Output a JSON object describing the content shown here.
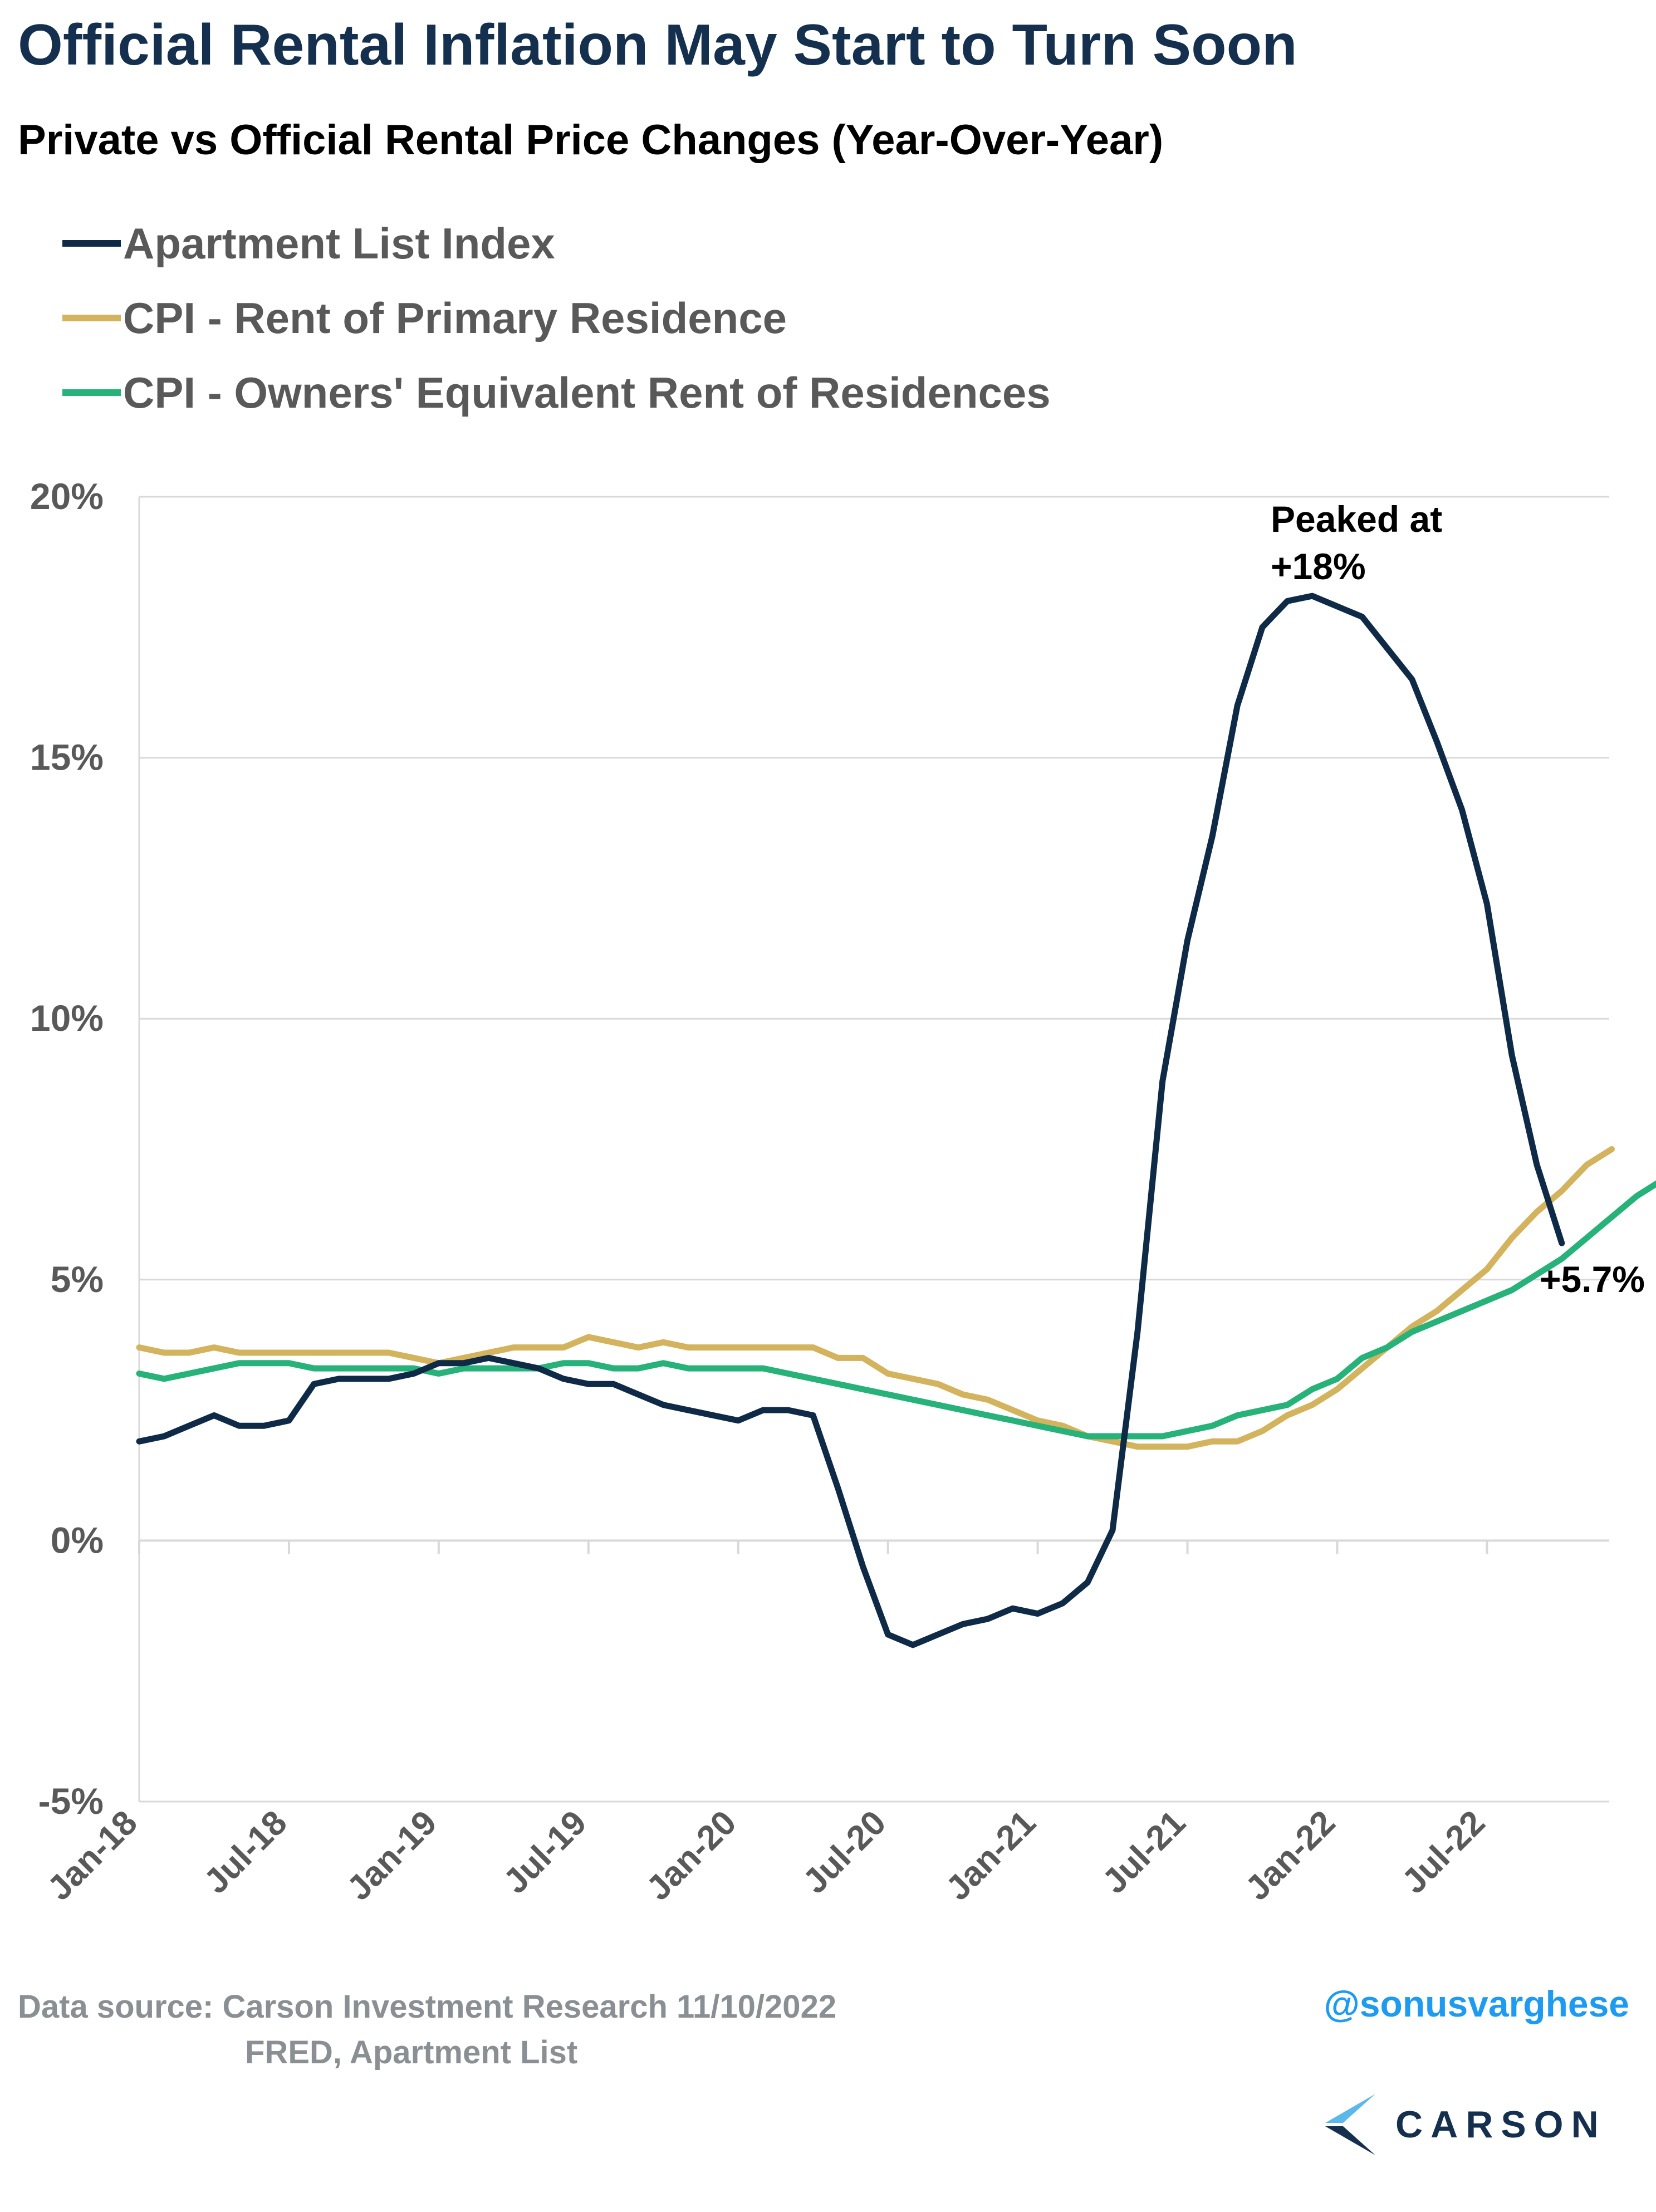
{
  "header": {
    "title": "Official Rental Inflation May Start to Turn Soon",
    "subtitle": "Private vs Official Rental Price Changes (Year-Over-Year)"
  },
  "legend": [
    {
      "label": "Apartment List Index",
      "color": "#0f2a47"
    },
    {
      "label": "CPI - Rent of Primary Residence",
      "color": "#d4b35e"
    },
    {
      "label": "CPI - Owners' Equivalent Rent of Residences",
      "color": "#27b27a"
    }
  ],
  "chart_data": {
    "type": "line",
    "title": "Official Rental Inflation May Start to Turn Soon",
    "subtitle": "Private vs Official Rental Price Changes (Year-Over-Year)",
    "x_start": "Jan-18",
    "x_tick_labels": [
      "Jan-18",
      "Jul-18",
      "Jan-19",
      "Jul-19",
      "Jan-20",
      "Jul-20",
      "Jan-21",
      "Jul-21",
      "Jan-22",
      "Jul-22"
    ],
    "y_tick_labels": [
      "20%",
      "15%",
      "10%",
      "5%",
      "0%",
      "-5%"
    ],
    "ylim": [
      -5,
      20
    ],
    "y_ticks": [
      20,
      15,
      10,
      5,
      0,
      -5
    ],
    "xlabel": "",
    "ylabel": "",
    "grid": true,
    "legend_position": "top-left",
    "series": [
      {
        "name": "Apartment List Index",
        "color": "#0f2a47",
        "values": [
          1.9,
          2.0,
          2.2,
          2.4,
          2.2,
          2.2,
          2.3,
          3.0,
          3.1,
          3.1,
          3.1,
          3.2,
          3.4,
          3.4,
          3.5,
          3.4,
          3.3,
          3.1,
          3.0,
          3.0,
          2.8,
          2.6,
          2.5,
          2.4,
          2.3,
          2.5,
          2.5,
          2.4,
          1.0,
          -0.5,
          -1.8,
          -2.0,
          -1.8,
          -1.6,
          -1.5,
          -1.3,
          -1.4,
          -1.2,
          -0.8,
          0.2,
          4.0,
          8.8,
          11.5,
          13.5,
          16.0,
          17.5,
          18.0,
          18.1,
          17.9,
          17.7,
          17.1,
          16.5,
          15.3,
          14.0,
          12.2,
          9.3,
          7.2,
          5.7
        ]
      },
      {
        "name": "CPI - Rent of Primary Residence",
        "color": "#d4b35e",
        "values": [
          3.7,
          3.6,
          3.6,
          3.7,
          3.6,
          3.6,
          3.6,
          3.6,
          3.6,
          3.6,
          3.6,
          3.5,
          3.4,
          3.5,
          3.6,
          3.7,
          3.7,
          3.7,
          3.9,
          3.8,
          3.7,
          3.8,
          3.7,
          3.7,
          3.7,
          3.7,
          3.7,
          3.7,
          3.5,
          3.5,
          3.2,
          3.1,
          3.0,
          2.8,
          2.7,
          2.5,
          2.3,
          2.2,
          2.0,
          1.9,
          1.8,
          1.8,
          1.8,
          1.9,
          1.9,
          2.1,
          2.4,
          2.6,
          2.9,
          3.3,
          3.7,
          4.1,
          4.4,
          4.8,
          5.2,
          5.8,
          6.3,
          6.7,
          7.2,
          7.5
        ]
      },
      {
        "name": "CPI - Owners' Equivalent Rent of Residences",
        "color": "#27b27a",
        "values": [
          3.2,
          3.1,
          3.2,
          3.3,
          3.4,
          3.4,
          3.4,
          3.3,
          3.3,
          3.3,
          3.3,
          3.3,
          3.2,
          3.3,
          3.3,
          3.3,
          3.3,
          3.4,
          3.4,
          3.3,
          3.3,
          3.4,
          3.3,
          3.3,
          3.3,
          3.3,
          3.2,
          3.1,
          3.0,
          2.9,
          2.8,
          2.7,
          2.6,
          2.5,
          2.4,
          2.3,
          2.2,
          2.1,
          2.0,
          2.0,
          2.0,
          2.0,
          2.1,
          2.2,
          2.4,
          2.5,
          2.6,
          2.9,
          3.1,
          3.5,
          3.7,
          4.0,
          4.2,
          4.4,
          4.6,
          4.8,
          5.1,
          5.4,
          5.8,
          6.2,
          6.6,
          6.9
        ]
      }
    ],
    "annotations": [
      {
        "text_line1": "Peaked at",
        "text_line2": "+18%"
      },
      {
        "text": "+5.7%"
      }
    ]
  },
  "footer": {
    "source_line1": "Data source: Carson Investment Research   11/10/2022",
    "source_line2": "FRED, Apartment List",
    "handle": "@sonusvarghese",
    "brand": "CARSON"
  }
}
